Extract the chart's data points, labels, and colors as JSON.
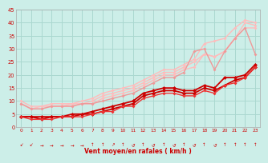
{
  "xlabel": "Vent moyen/en rafales ( km/h )",
  "xlim": [
    -0.5,
    23.5
  ],
  "ylim": [
    0,
    45
  ],
  "xticks": [
    0,
    1,
    2,
    3,
    4,
    5,
    6,
    7,
    8,
    9,
    10,
    11,
    12,
    13,
    14,
    15,
    16,
    17,
    18,
    19,
    20,
    21,
    22,
    23
  ],
  "yticks": [
    0,
    5,
    10,
    15,
    20,
    25,
    30,
    35,
    40,
    45
  ],
  "bg_color": "#cceee8",
  "grid_color": "#aad8d0",
  "series": [
    {
      "x": [
        0,
        1,
        2,
        3,
        4,
        5,
        6,
        7,
        8,
        9,
        10,
        11,
        12,
        13,
        14,
        15,
        16,
        17,
        18,
        19,
        20,
        21,
        22,
        23
      ],
      "y": [
        10,
        8,
        8,
        9,
        9,
        9,
        10,
        11,
        13,
        14,
        15,
        16,
        18,
        20,
        22,
        22,
        24,
        26,
        32,
        33,
        34,
        38,
        41,
        40
      ],
      "color": "#ffbbbb",
      "lw": 1.0,
      "marker": "D",
      "ms": 2.0
    },
    {
      "x": [
        0,
        1,
        2,
        3,
        4,
        5,
        6,
        7,
        8,
        9,
        10,
        11,
        12,
        13,
        14,
        15,
        16,
        17,
        18,
        19,
        20,
        21,
        22,
        23
      ],
      "y": [
        9,
        7,
        8,
        8,
        8,
        9,
        9,
        10,
        12,
        13,
        14,
        15,
        17,
        19,
        21,
        21,
        23,
        25,
        28,
        27,
        29,
        34,
        40,
        39
      ],
      "color": "#ffbbbb",
      "lw": 1.0,
      "marker": "D",
      "ms": 2.0
    },
    {
      "x": [
        0,
        1,
        2,
        3,
        4,
        5,
        6,
        7,
        8,
        9,
        10,
        11,
        12,
        13,
        14,
        15,
        16,
        17,
        18,
        19,
        20,
        21,
        22,
        23
      ],
      "y": [
        9,
        7,
        7,
        8,
        8,
        8,
        9,
        9,
        11,
        12,
        13,
        14,
        16,
        18,
        20,
        20,
        22,
        23,
        28,
        27,
        29,
        34,
        38,
        38
      ],
      "color": "#ffbbbb",
      "lw": 1.0,
      "marker": "D",
      "ms": 2.0
    },
    {
      "x": [
        0,
        1,
        2,
        3,
        4,
        5,
        6,
        7,
        8,
        9,
        10,
        11,
        12,
        13,
        14,
        15,
        16,
        17,
        18,
        19,
        20,
        21,
        22,
        23
      ],
      "y": [
        9,
        7,
        7,
        8,
        8,
        8,
        9,
        9,
        10,
        11,
        12,
        13,
        15,
        17,
        19,
        19,
        21,
        29,
        30,
        22,
        29,
        34,
        38,
        28
      ],
      "color": "#ee9999",
      "lw": 1.0,
      "marker": "D",
      "ms": 2.0
    },
    {
      "x": [
        0,
        1,
        2,
        3,
        4,
        5,
        6,
        7,
        8,
        9,
        10,
        11,
        12,
        13,
        14,
        15,
        16,
        17,
        18,
        19,
        20,
        21,
        22,
        23
      ],
      "y": [
        4,
        4,
        4,
        4,
        4,
        5,
        5,
        6,
        7,
        8,
        9,
        10,
        13,
        14,
        15,
        15,
        14,
        14,
        16,
        15,
        19,
        19,
        20,
        24
      ],
      "color": "#cc0000",
      "lw": 1.3,
      "marker": "D",
      "ms": 2.5
    },
    {
      "x": [
        0,
        1,
        2,
        3,
        4,
        5,
        6,
        7,
        8,
        9,
        10,
        11,
        12,
        13,
        14,
        15,
        16,
        17,
        18,
        19,
        20,
        21,
        22,
        23
      ],
      "y": [
        4,
        4,
        3,
        4,
        4,
        4,
        5,
        5,
        6,
        7,
        8,
        9,
        12,
        13,
        14,
        14,
        13,
        13,
        15,
        14,
        16,
        18,
        19,
        23
      ],
      "color": "#cc0000",
      "lw": 1.3,
      "marker": "D",
      "ms": 2.5
    },
    {
      "x": [
        0,
        1,
        2,
        3,
        4,
        5,
        6,
        7,
        8,
        9,
        10,
        11,
        12,
        13,
        14,
        15,
        16,
        17,
        18,
        19,
        20,
        21,
        22,
        23
      ],
      "y": [
        4,
        3,
        3,
        3,
        4,
        4,
        4,
        5,
        6,
        6,
        8,
        8,
        11,
        12,
        13,
        13,
        12,
        12,
        14,
        13,
        16,
        17,
        19,
        23
      ],
      "color": "#ee3333",
      "lw": 1.0,
      "marker": "D",
      "ms": 2.0
    }
  ],
  "arrow_texts": [
    "↙",
    "↙",
    "→",
    "→",
    "→",
    "→",
    "→",
    "↑",
    "↑",
    "↗",
    "↑",
    "↺",
    "↑",
    "↺",
    "↑",
    "↺",
    "↑",
    "↺",
    "↑",
    "↺",
    "↑",
    "↑",
    "↑",
    "↑"
  ]
}
